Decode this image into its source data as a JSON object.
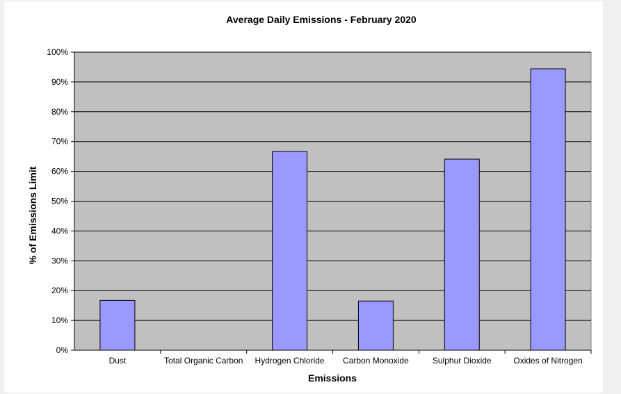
{
  "chart_data": {
    "type": "bar",
    "title": "Average Daily Emissions - February 2020",
    "xlabel": "Emissions",
    "ylabel": "% of Emissions Limit",
    "categories": [
      "Dust",
      "Total Organic Carbon",
      "Hydrogen Chloride",
      "Carbon Monoxide",
      "Sulphur Dioxide",
      "Oxides of Nitrogen"
    ],
    "values": [
      16.7,
      0,
      66.7,
      16.5,
      64.1,
      94.4
    ],
    "ylim": [
      0,
      100
    ],
    "yticks": [
      0,
      10,
      20,
      30,
      40,
      50,
      60,
      70,
      80,
      90,
      100
    ],
    "ytick_labels": [
      "0%",
      "10%",
      "20%",
      "30%",
      "40%",
      "50%",
      "60%",
      "70%",
      "80%",
      "90%",
      "100%"
    ],
    "grid": true,
    "legend": "none",
    "colors": {
      "bar_fill": "#9999ff",
      "bar_stroke": "#000000",
      "plot_background": "#c0c0c0",
      "gridline": "#000000"
    }
  }
}
